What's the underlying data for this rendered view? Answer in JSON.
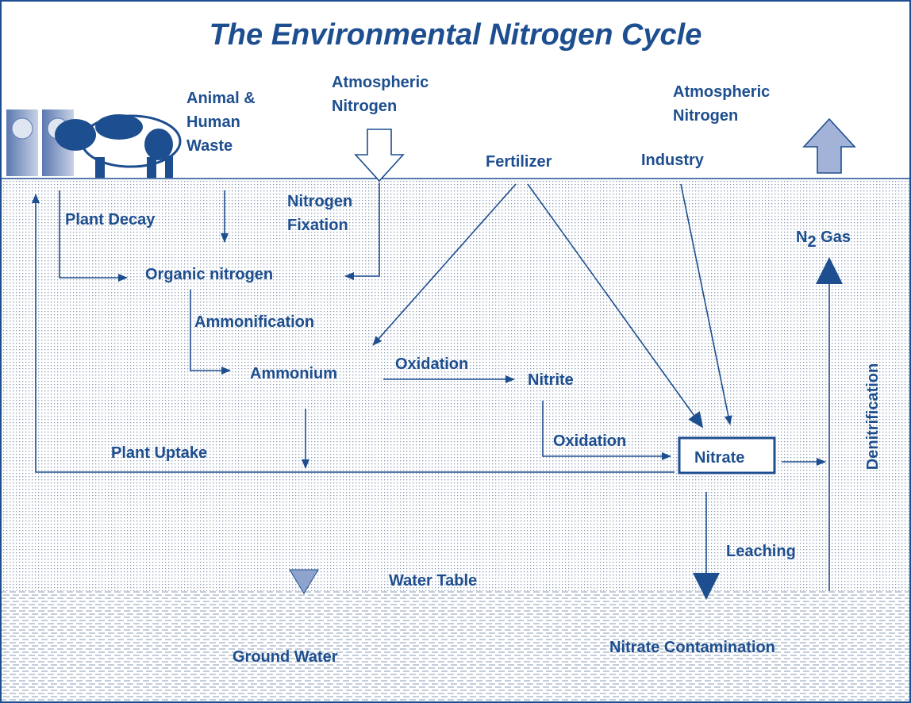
{
  "title": "The Environmental Nitrogen Cycle",
  "labels": {
    "animal_waste": [
      "Animal &",
      "Human",
      "Waste"
    ],
    "atmospheric_left": [
      "Atmospheric",
      "Nitrogen"
    ],
    "atmospheric_right": [
      "Atmospheric",
      "Nitrogen"
    ],
    "fertilizer": "Fertilizer",
    "industry": "Industry",
    "nitrogen_fixation": [
      "Nitrogen",
      "Fixation"
    ],
    "plant_decay": "Plant Decay",
    "n2_gas": {
      "symbol": "N",
      "subscript": "2",
      "rest": " Gas"
    },
    "organic_nitrogen": "Organic nitrogen",
    "ammonification": "Ammonification",
    "ammonium": "Ammonium",
    "oxidation_1": "Oxidation",
    "nitrite": "Nitrite",
    "oxidation_2": "Oxidation",
    "nitrate": "Nitrate",
    "plant_uptake": "Plant Uptake",
    "denitrification": "Denitrification",
    "leaching": "Leaching",
    "water_table": "Water Table",
    "ground_water": "Ground Water",
    "nitrate_contamination": "Nitrate Contamination"
  }
}
